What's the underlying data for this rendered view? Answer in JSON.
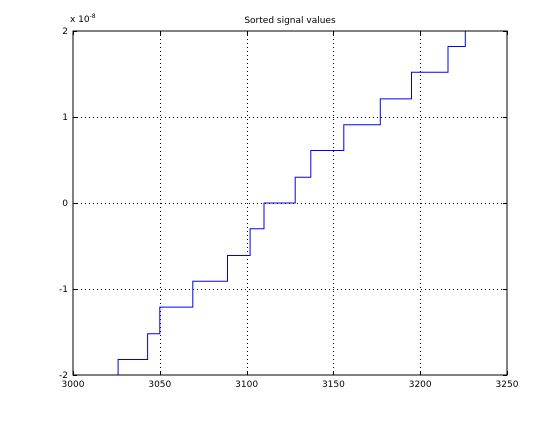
{
  "chart_data": {
    "type": "line",
    "title": "Sorted signal values",
    "xlabel": "",
    "ylabel": "",
    "xlim": [
      3000,
      3250
    ],
    "ylim": [
      -2e-08,
      2e-08
    ],
    "x_ticks": [
      3000,
      3050,
      3100,
      3150,
      3200,
      3250
    ],
    "y_ticks": [
      -2,
      -1,
      0,
      1,
      2
    ],
    "y_multiplier_base": "x 10",
    "y_multiplier_exponent": "-8",
    "grid": true,
    "grid_style": "dotted",
    "line_color": "#0000ff",
    "series": [
      {
        "points": [
          [
            3026,
            -2e-08
          ],
          [
            3026,
            -1.82e-08
          ],
          [
            3043,
            -1.82e-08
          ],
          [
            3043,
            -1.52e-08
          ],
          [
            3050,
            -1.52e-08
          ],
          [
            3050,
            -1.21e-08
          ],
          [
            3069,
            -1.21e-08
          ],
          [
            3069,
            -9.1e-09
          ],
          [
            3089,
            -9.1e-09
          ],
          [
            3089,
            -6.1e-09
          ],
          [
            3102,
            -6.1e-09
          ],
          [
            3102,
            -3e-09
          ],
          [
            3110,
            -3e-09
          ],
          [
            3110,
            0.0
          ],
          [
            3128,
            0.0
          ],
          [
            3128,
            3e-09
          ],
          [
            3137,
            3e-09
          ],
          [
            3137,
            6.1e-09
          ],
          [
            3156,
            6.1e-09
          ],
          [
            3156,
            9.1e-09
          ],
          [
            3177,
            9.1e-09
          ],
          [
            3177,
            1.21e-08
          ],
          [
            3195,
            1.21e-08
          ],
          [
            3195,
            1.52e-08
          ],
          [
            3216,
            1.52e-08
          ],
          [
            3216,
            1.82e-08
          ],
          [
            3226,
            1.82e-08
          ],
          [
            3226,
            2e-08
          ]
        ]
      }
    ]
  }
}
